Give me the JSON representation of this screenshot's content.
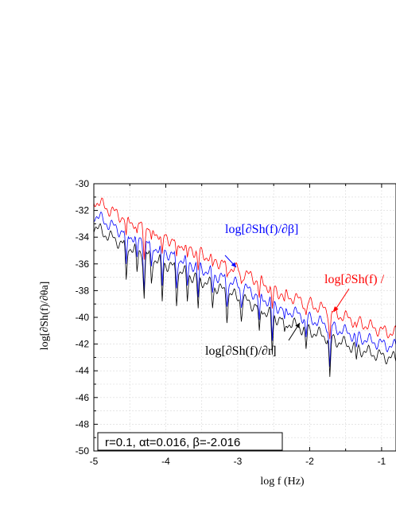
{
  "chart_data": {
    "type": "line",
    "title": "",
    "xlabel": "log f (Hz)",
    "ylabel": "log[∂Sh(f)/∂θa]",
    "xlim": [
      -5,
      -0.8
    ],
    "ylim": [
      -50,
      -30
    ],
    "x_ticks": [
      -5,
      -4,
      -3,
      -2,
      -1
    ],
    "x_tick_labels": [
      "-5",
      "-4",
      "-3",
      "-2",
      "-1"
    ],
    "y_ticks": [
      -30,
      -32,
      -34,
      -36,
      -38,
      -40,
      -42,
      -44,
      -46,
      -48,
      -50
    ],
    "y_tick_labels": [
      "-30",
      "-32",
      "-34",
      "-36",
      "-38",
      "-40",
      "-42",
      "-44",
      "-46",
      "-48",
      "-50"
    ],
    "grid": true,
    "series": [
      {
        "color": "#ff0000",
        "x": [
          -5.0,
          -4.8,
          -4.6,
          -4.4,
          -4.2,
          -4.0,
          -3.8,
          -3.6,
          -3.4,
          -3.2,
          -3.0,
          -2.8,
          -2.6,
          -2.4,
          -2.2,
          -2.0,
          -1.8,
          -1.6,
          -1.4,
          -1.2,
          -1.0,
          -0.8
        ],
        "values": [
          -31.2,
          -31.9,
          -32.5,
          -33.0,
          -33.5,
          -34.0,
          -34.5,
          -35.0,
          -35.5,
          -36.0,
          -36.5,
          -37.0,
          -37.6,
          -38.2,
          -38.6,
          -39.0,
          -39.4,
          -39.8,
          -40.2,
          -40.6,
          -41.0,
          -41.2
        ]
      },
      {
        "color": "#0000ff",
        "x": [
          -5.0,
          -4.8,
          -4.6,
          -4.4,
          -4.2,
          -4.0,
          -3.8,
          -3.6,
          -3.4,
          -3.2,
          -3.0,
          -2.8,
          -2.6,
          -2.4,
          -2.2,
          -2.0,
          -1.8,
          -1.6,
          -1.4,
          -1.2,
          -1.0,
          -0.8
        ],
        "values": [
          -32.3,
          -33.0,
          -33.6,
          -34.1,
          -34.6,
          -35.1,
          -35.6,
          -36.1,
          -36.6,
          -37.1,
          -37.6,
          -38.1,
          -38.7,
          -39.3,
          -39.7,
          -40.1,
          -40.5,
          -40.9,
          -41.3,
          -41.7,
          -42.0,
          -42.2
        ]
      },
      {
        "color": "#000000",
        "x": [
          -5.0,
          -4.8,
          -4.6,
          -4.4,
          -4.2,
          -4.0,
          -3.8,
          -3.6,
          -3.4,
          -3.2,
          -3.0,
          -2.8,
          -2.6,
          -2.4,
          -2.2,
          -2.0,
          -1.8,
          -1.6,
          -1.4,
          -1.2,
          -1.0,
          -0.8
        ],
        "values": [
          -33.2,
          -33.9,
          -34.5,
          -35.0,
          -35.5,
          -36.0,
          -36.5,
          -37.0,
          -37.5,
          -38.0,
          -38.5,
          -39.0,
          -39.6,
          -40.2,
          -40.6,
          -41.0,
          -41.4,
          -41.8,
          -42.2,
          -42.6,
          -42.9,
          -43.1
        ]
      }
    ],
    "annotations": [
      {
        "text": "log[∂Sh(f)/∂β]",
        "color": "#0000ff",
        "at": [
          -2.75,
          -36.4
        ],
        "arrow_to": [
          -3.1,
          -36.3
        ]
      },
      {
        "text": "log[∂Sh(f) /",
        "color": "#ff0000",
        "at": [
          -1.95,
          -37.0
        ],
        "arrow_to": [
          -1.7,
          -40.6
        ]
      },
      {
        "text": "log[∂Sh(f)/∂r]",
        "color": "#000000",
        "at": [
          -1.85,
          -43.2
        ],
        "arrow_to": [
          -2.2,
          -40.2
        ]
      }
    ],
    "parameter_box": "r=0.1, αt=0.016, β=-2.016"
  }
}
